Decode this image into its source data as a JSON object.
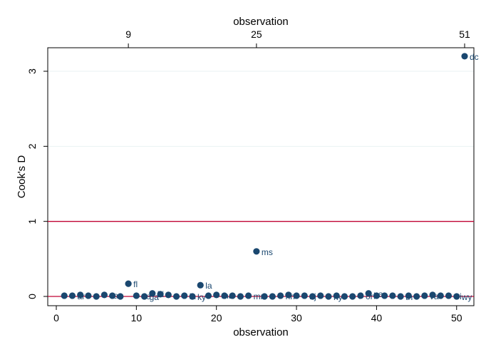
{
  "chart_data": {
    "type": "scatter",
    "xlabel": "observation",
    "ylabel": "Cook's D",
    "top_axis_label": "observation",
    "xlim": [
      0,
      51
    ],
    "ylim": [
      0,
      3.25
    ],
    "x_ticks": [
      0,
      10,
      20,
      30,
      40,
      50
    ],
    "y_ticks": [
      0,
      1,
      2,
      3
    ],
    "top_ticks": [
      "9",
      "25",
      "51"
    ],
    "reference_lines": [
      0,
      1
    ],
    "grid": true,
    "colors": {
      "marker": "#1a476f",
      "reference_line": "#c10534",
      "grid": "#eaf2f3"
    },
    "points": [
      {
        "x": 1,
        "y": 0.01,
        "label": ""
      },
      {
        "x": 2,
        "y": 0.01,
        "label": "ar"
      },
      {
        "x": 3,
        "y": 0.02,
        "label": ""
      },
      {
        "x": 4,
        "y": 0.01,
        "label": ""
      },
      {
        "x": 5,
        "y": 0.0,
        "label": ""
      },
      {
        "x": 6,
        "y": 0.02,
        "label": "ca"
      },
      {
        "x": 7,
        "y": 0.01,
        "label": ""
      },
      {
        "x": 8,
        "y": 0.0,
        "label": ""
      },
      {
        "x": 9,
        "y": 0.17,
        "label": "fl"
      },
      {
        "x": 10,
        "y": 0.01,
        "label": "de"
      },
      {
        "x": 11,
        "y": 0.0,
        "label": "ga"
      },
      {
        "x": 12,
        "y": 0.04,
        "label": "hi"
      },
      {
        "x": 13,
        "y": 0.03,
        "label": ""
      },
      {
        "x": 14,
        "y": 0.02,
        "label": ""
      },
      {
        "x": 15,
        "y": 0.0,
        "label": ""
      },
      {
        "x": 16,
        "y": 0.01,
        "label": "in"
      },
      {
        "x": 17,
        "y": 0.0,
        "label": "ky"
      },
      {
        "x": 18,
        "y": 0.15,
        "label": "la"
      },
      {
        "x": 19,
        "y": 0.01,
        "label": ""
      },
      {
        "x": 20,
        "y": 0.02,
        "label": "ma"
      },
      {
        "x": 21,
        "y": 0.01,
        "label": ""
      },
      {
        "x": 22,
        "y": 0.01,
        "label": ""
      },
      {
        "x": 23,
        "y": 0.0,
        "label": ""
      },
      {
        "x": 24,
        "y": 0.01,
        "label": "mn"
      },
      {
        "x": 25,
        "y": 0.6,
        "label": "ms"
      },
      {
        "x": 26,
        "y": 0.0,
        "label": ""
      },
      {
        "x": 27,
        "y": 0.0,
        "label": ""
      },
      {
        "x": 28,
        "y": 0.01,
        "label": "nh"
      },
      {
        "x": 29,
        "y": 0.02,
        "label": ""
      },
      {
        "x": 30,
        "y": 0.01,
        "label": ""
      },
      {
        "x": 31,
        "y": 0.01,
        "label": "nj"
      },
      {
        "x": 32,
        "y": 0.0,
        "label": ""
      },
      {
        "x": 33,
        "y": 0.01,
        "label": ""
      },
      {
        "x": 34,
        "y": 0.0,
        "label": "ny"
      },
      {
        "x": 35,
        "y": 0.01,
        "label": ""
      },
      {
        "x": 36,
        "y": 0.0,
        "label": ""
      },
      {
        "x": 37,
        "y": 0.0,
        "label": ""
      },
      {
        "x": 38,
        "y": 0.01,
        "label": "or"
      },
      {
        "x": 39,
        "y": 0.04,
        "label": "pa"
      },
      {
        "x": 40,
        "y": 0.01,
        "label": ""
      },
      {
        "x": 41,
        "y": 0.01,
        "label": ""
      },
      {
        "x": 42,
        "y": 0.01,
        "label": ""
      },
      {
        "x": 43,
        "y": 0.0,
        "label": "tn"
      },
      {
        "x": 44,
        "y": 0.01,
        "label": ""
      },
      {
        "x": 45,
        "y": 0.0,
        "label": ""
      },
      {
        "x": 46,
        "y": 0.01,
        "label": "va"
      },
      {
        "x": 47,
        "y": 0.02,
        "label": ""
      },
      {
        "x": 48,
        "y": 0.01,
        "label": ""
      },
      {
        "x": 49,
        "y": 0.01,
        "label": "wi"
      },
      {
        "x": 50,
        "y": 0.0,
        "label": "wy"
      },
      {
        "x": 51,
        "y": 3.2,
        "label": "dc"
      }
    ]
  }
}
